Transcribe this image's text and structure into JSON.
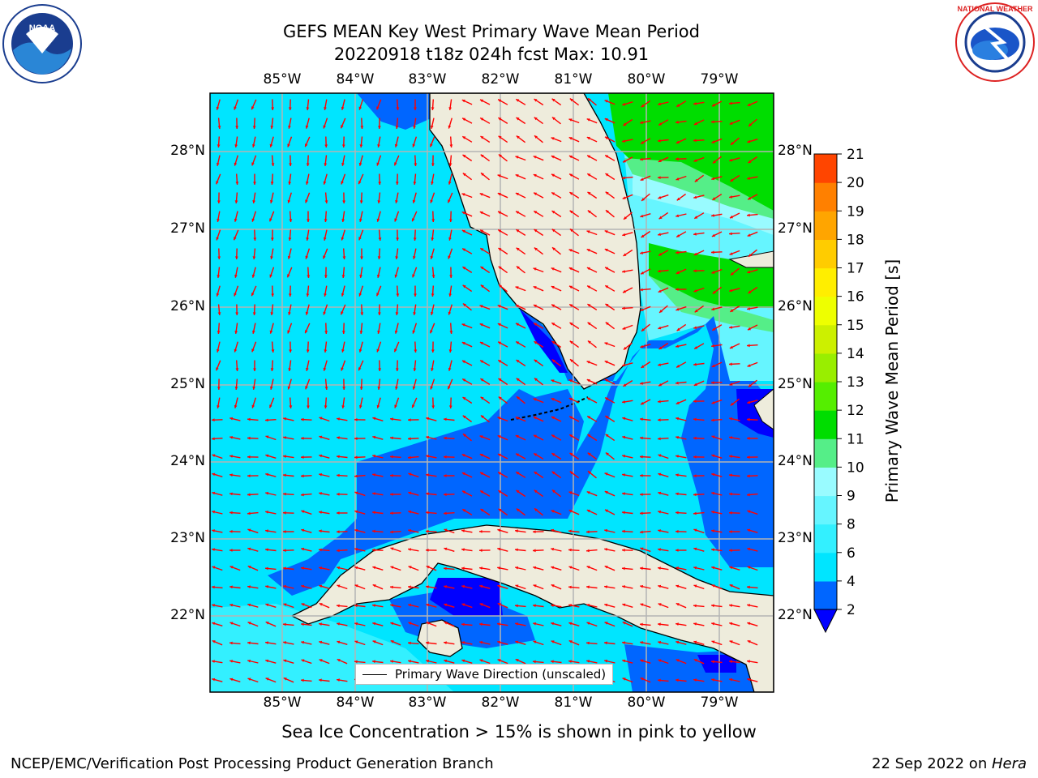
{
  "header": {
    "title_line1": "GEFS MEAN Key West Primary Wave Mean Period",
    "title_line2": "20220918 t18z 024h fcst   Max: 10.91"
  },
  "logos": {
    "left": {
      "name": "noaa-logo",
      "text": "NOAA"
    },
    "right": {
      "name": "nws-logo",
      "text": "NATIONAL WEATHER SERVICE"
    }
  },
  "map": {
    "lon_labels": [
      "85°W",
      "84°W",
      "83°W",
      "82°W",
      "81°W",
      "80°W",
      "79°W"
    ],
    "lat_labels": [
      "28°N",
      "27°N",
      "26°N",
      "25°N",
      "24°N",
      "23°N",
      "22°N"
    ],
    "legend_text": "Primary Wave Direction (unscaled)",
    "colors": {
      "land": "#eeecdc",
      "grid": "#b4b4b4",
      "coast": "#000000",
      "arrow": "#ff0000"
    }
  },
  "colorbar": {
    "label": "Primary Wave Mean Period [s]",
    "ticks": [
      "2",
      "4",
      "6",
      "8",
      "9",
      "10",
      "11",
      "12",
      "13",
      "14",
      "15",
      "16",
      "17",
      "18",
      "19",
      "20",
      "21"
    ],
    "colors": [
      "#0066ff",
      "#00e5ff",
      "#33f0ff",
      "#66f5ff",
      "#99fbff",
      "#55ee88",
      "#00dd00",
      "#55ee00",
      "#99ee00",
      "#ccf000",
      "#eeff00",
      "#ffee00",
      "#ffcc00",
      "#ffa500",
      "#ff8000",
      "#ff4500",
      "#ff0000"
    ],
    "under_color": "#0000ff"
  },
  "footer": {
    "note": "Sea Ice Concentration > 15% is shown in pink to yellow",
    "left": "NCEP/EMC/Verification Post Processing Product Generation Branch",
    "right_prefix": "22 Sep 2022 on ",
    "right_host": "Hera"
  }
}
